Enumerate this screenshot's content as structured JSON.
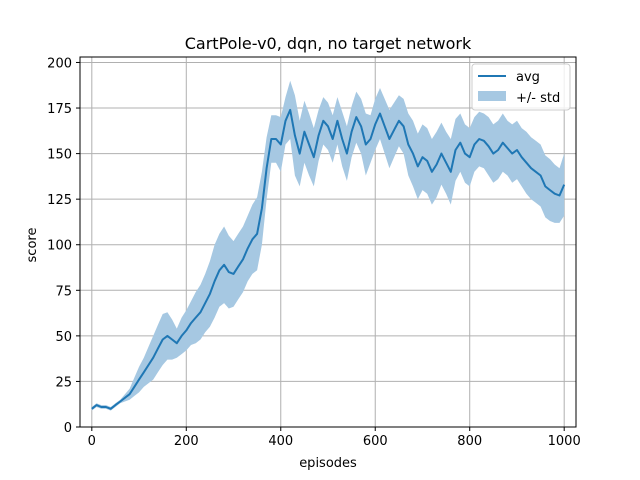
{
  "chart_data": {
    "type": "line",
    "title": "CartPole-v0, dqn, no target network",
    "xlabel": "episodes",
    "ylabel": "score",
    "xlim": [
      -25,
      1025
    ],
    "ylim": [
      0,
      203
    ],
    "xticks": [
      0,
      200,
      400,
      600,
      800,
      1000
    ],
    "yticks": [
      0,
      25,
      50,
      75,
      100,
      125,
      150,
      175,
      200
    ],
    "grid": true,
    "legend_position": "top-right",
    "colors": {
      "line": "#1f77b4",
      "band": "#a6c8e2",
      "grid": "#b0b0b0"
    },
    "series": [
      {
        "name": "avg",
        "style": "line",
        "x": [
          0,
          10,
          20,
          30,
          40,
          50,
          60,
          70,
          80,
          90,
          100,
          110,
          120,
          130,
          140,
          150,
          160,
          170,
          180,
          190,
          200,
          210,
          220,
          230,
          240,
          250,
          260,
          270,
          280,
          290,
          300,
          310,
          320,
          330,
          340,
          350,
          360,
          370,
          380,
          390,
          400,
          410,
          420,
          430,
          440,
          450,
          460,
          470,
          480,
          490,
          500,
          510,
          520,
          530,
          540,
          550,
          560,
          570,
          580,
          590,
          600,
          610,
          620,
          630,
          640,
          650,
          660,
          670,
          680,
          690,
          700,
          710,
          720,
          730,
          740,
          750,
          760,
          770,
          780,
          790,
          800,
          810,
          820,
          830,
          840,
          850,
          860,
          870,
          880,
          890,
          900,
          910,
          920,
          930,
          940,
          950,
          960,
          970,
          980,
          990,
          1000
        ],
        "y": [
          10,
          12,
          11,
          11,
          10,
          12,
          14,
          16,
          18,
          22,
          26,
          30,
          34,
          38,
          43,
          48,
          50,
          48,
          46,
          50,
          53,
          57,
          60,
          63,
          68,
          73,
          80,
          86,
          89,
          85,
          84,
          88,
          92,
          98,
          103,
          106,
          120,
          142,
          158,
          158,
          155,
          168,
          174,
          160,
          150,
          162,
          155,
          148,
          160,
          168,
          165,
          158,
          168,
          158,
          150,
          162,
          170,
          165,
          155,
          158,
          166,
          172,
          165,
          158,
          163,
          168,
          165,
          155,
          150,
          143,
          148,
          146,
          140,
          144,
          150,
          145,
          140,
          152,
          156,
          150,
          148,
          155,
          158,
          157,
          154,
          150,
          152,
          156,
          153,
          150,
          152,
          148,
          145,
          142,
          140,
          138,
          132,
          130,
          128,
          127,
          133
        ]
      },
      {
        "name": "+/- std",
        "style": "band",
        "x": [
          0,
          10,
          20,
          30,
          40,
          50,
          60,
          70,
          80,
          90,
          100,
          110,
          120,
          130,
          140,
          150,
          160,
          170,
          180,
          190,
          200,
          210,
          220,
          230,
          240,
          250,
          260,
          270,
          280,
          290,
          300,
          310,
          320,
          330,
          340,
          350,
          360,
          370,
          380,
          390,
          400,
          410,
          420,
          430,
          440,
          450,
          460,
          470,
          480,
          490,
          500,
          510,
          520,
          530,
          540,
          550,
          560,
          570,
          580,
          590,
          600,
          610,
          620,
          630,
          640,
          650,
          660,
          670,
          680,
          690,
          700,
          710,
          720,
          730,
          740,
          750,
          760,
          770,
          780,
          790,
          800,
          810,
          820,
          830,
          840,
          850,
          860,
          870,
          880,
          890,
          900,
          910,
          920,
          930,
          940,
          950,
          960,
          970,
          980,
          990,
          1000
        ],
        "lower": [
          9,
          11,
          10,
          10,
          9,
          11,
          13,
          14,
          15,
          17,
          19,
          22,
          24,
          26,
          30,
          34,
          37,
          37,
          38,
          40,
          42,
          45,
          46,
          48,
          52,
          55,
          60,
          66,
          68,
          65,
          66,
          70,
          74,
          80,
          84,
          86,
          100,
          125,
          145,
          145,
          140,
          155,
          158,
          138,
          132,
          145,
          138,
          132,
          146,
          155,
          152,
          145,
          155,
          143,
          135,
          148,
          156,
          150,
          138,
          145,
          152,
          158,
          150,
          142,
          148,
          154,
          150,
          138,
          132,
          125,
          130,
          128,
          122,
          126,
          133,
          128,
          122,
          135,
          140,
          134,
          132,
          140,
          143,
          142,
          138,
          134,
          136,
          140,
          138,
          134,
          136,
          132,
          128,
          125,
          123,
          121,
          115,
          113,
          112,
          112,
          116
        ],
        "upper": [
          11,
          13,
          12,
          12,
          11,
          13,
          15,
          18,
          21,
          27,
          33,
          38,
          44,
          50,
          56,
          62,
          63,
          59,
          54,
          60,
          64,
          69,
          74,
          78,
          84,
          91,
          100,
          106,
          110,
          105,
          102,
          106,
          110,
          116,
          122,
          126,
          140,
          159,
          171,
          171,
          170,
          181,
          190,
          182,
          168,
          179,
          172,
          164,
          174,
          181,
          178,
          171,
          181,
          173,
          165,
          176,
          184,
          180,
          172,
          171,
          180,
          186,
          180,
          174,
          178,
          182,
          180,
          172,
          168,
          161,
          166,
          164,
          158,
          162,
          167,
          162,
          158,
          169,
          172,
          166,
          164,
          170,
          173,
          172,
          170,
          166,
          168,
          172,
          168,
          166,
          168,
          164,
          162,
          159,
          157,
          155,
          149,
          147,
          144,
          142,
          150
        ]
      }
    ]
  }
}
